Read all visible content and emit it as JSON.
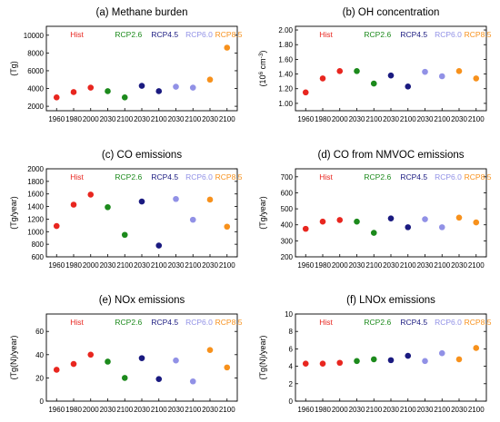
{
  "colors": {
    "Hist": "#e8261f",
    "RCP2.6": "#1c8a1c",
    "RCP4.5": "#1a1a80",
    "RCP6.0": "#9191e6",
    "RCP8.5": "#f7911c"
  },
  "x_tick_labels": [
    "1960",
    "1980",
    "2000",
    "2030",
    "2100",
    "2030",
    "2100",
    "2030",
    "2100",
    "2030",
    "2100"
  ],
  "chart_data": [
    {
      "type": "scatter",
      "title": "(a) Methane burden",
      "ylabel": "(Tg)",
      "ylim": [
        1500,
        11000
      ],
      "yticks": [
        2000,
        4000,
        6000,
        8000,
        10000
      ],
      "ytick_labels": [
        "2000",
        "4000",
        "6000",
        "8000",
        "10000"
      ],
      "legend": [
        "Hist",
        "RCP2.6",
        "RCP4.5",
        "RCP6.0",
        "RCP8.5"
      ],
      "categories": [
        "1960",
        "1980",
        "2000",
        "2030",
        "2100",
        "2030",
        "2100",
        "2030",
        "2100",
        "2030",
        "2100"
      ],
      "series": [
        {
          "name": "Hist",
          "values": [
            3000,
            3600,
            4100
          ]
        },
        {
          "name": "RCP2.6",
          "values": [
            3700,
            3000
          ]
        },
        {
          "name": "RCP4.5",
          "values": [
            4300,
            3700
          ]
        },
        {
          "name": "RCP6.0",
          "values": [
            4200,
            4100
          ]
        },
        {
          "name": "RCP8.5",
          "values": [
            5000,
            8600
          ]
        }
      ]
    },
    {
      "type": "scatter",
      "title": "(b) OH concentration",
      "ylabel_main": "(10",
      "ylabel_exp": "6",
      "ylabel_rest": " cm",
      "ylabel_exp2": "-3",
      "ylabel_end": ")",
      "ylim": [
        0.9,
        2.05
      ],
      "yticks": [
        1.0,
        1.2,
        1.4,
        1.6,
        1.8,
        2.0
      ],
      "ytick_labels": [
        "1.00",
        "1.20",
        "1.40",
        "1.60",
        "1.80",
        "2.00"
      ],
      "legend": [
        "Hist",
        "RCP2.6",
        "RCP4.5",
        "RCP6.0",
        "RCP8.5"
      ],
      "categories": [
        "1960",
        "1980",
        "2000",
        "2030",
        "2100",
        "2030",
        "2100",
        "2030",
        "2100",
        "2030",
        "2100"
      ],
      "series": [
        {
          "name": "Hist",
          "values": [
            1.15,
            1.34,
            1.44
          ]
        },
        {
          "name": "RCP2.6",
          "values": [
            1.44,
            1.27
          ]
        },
        {
          "name": "RCP4.5",
          "values": [
            1.38,
            1.23
          ]
        },
        {
          "name": "RCP6.0",
          "values": [
            1.43,
            1.37
          ]
        },
        {
          "name": "RCP8.5",
          "values": [
            1.44,
            1.34
          ]
        }
      ]
    },
    {
      "type": "scatter",
      "title": "(c) CO emissions",
      "ylabel": "(Tg/year)",
      "ylim": [
        600,
        2000
      ],
      "yticks": [
        600,
        800,
        1000,
        1200,
        1400,
        1600,
        1800,
        2000
      ],
      "ytick_labels": [
        "600",
        "800",
        "1000",
        "1200",
        "1400",
        "1600",
        "1800",
        "2000"
      ],
      "legend": [
        "Hist",
        "RCP2.6",
        "RCP4.5",
        "RCP6.0",
        "RCP8.5"
      ],
      "categories": [
        "1960",
        "1980",
        "2000",
        "2030",
        "2100",
        "2030",
        "2100",
        "2030",
        "2100",
        "2030",
        "2100"
      ],
      "series": [
        {
          "name": "Hist",
          "values": [
            1090,
            1430,
            1590
          ]
        },
        {
          "name": "RCP2.6",
          "values": [
            1390,
            950
          ]
        },
        {
          "name": "RCP4.5",
          "values": [
            1480,
            780
          ]
        },
        {
          "name": "RCP6.0",
          "values": [
            1520,
            1190
          ]
        },
        {
          "name": "RCP8.5",
          "values": [
            1510,
            1080
          ]
        }
      ]
    },
    {
      "type": "scatter",
      "title": "(d) CO from NMVOC emissions",
      "ylabel": "(Tg/year)",
      "ylim": [
        200,
        750
      ],
      "yticks": [
        200,
        300,
        400,
        500,
        600,
        700
      ],
      "ytick_labels": [
        "200",
        "300",
        "400",
        "500",
        "600",
        "700"
      ],
      "legend": [
        "Hist",
        "RCP2.6",
        "RCP4.5",
        "RCP6.0",
        "RCP8.5"
      ],
      "categories": [
        "1960",
        "1980",
        "2000",
        "2030",
        "2100",
        "2030",
        "2100",
        "2030",
        "2100",
        "2030",
        "2100"
      ],
      "series": [
        {
          "name": "Hist",
          "values": [
            375,
            420,
            430
          ]
        },
        {
          "name": "RCP2.6",
          "values": [
            420,
            350
          ]
        },
        {
          "name": "RCP4.5",
          "values": [
            440,
            385
          ]
        },
        {
          "name": "RCP6.0",
          "values": [
            435,
            385
          ]
        },
        {
          "name": "RCP8.5",
          "values": [
            445,
            415
          ]
        }
      ]
    },
    {
      "type": "scatter",
      "title": "(e) NOx emissions",
      "ylabel": "(Tg(N)/year)",
      "ylim": [
        0,
        75
      ],
      "yticks": [
        0,
        20,
        40,
        60
      ],
      "ytick_labels": [
        "0",
        "20",
        "40",
        "60"
      ],
      "legend": [
        "Hist",
        "RCP2.6",
        "RCP4.5",
        "RCP6.0",
        "RCP8.5"
      ],
      "categories": [
        "1960",
        "1980",
        "2000",
        "2030",
        "2100",
        "2030",
        "2100",
        "2030",
        "2100",
        "2030",
        "2100"
      ],
      "series": [
        {
          "name": "Hist",
          "values": [
            27,
            32,
            40
          ]
        },
        {
          "name": "RCP2.6",
          "values": [
            34,
            20
          ]
        },
        {
          "name": "RCP4.5",
          "values": [
            37,
            19
          ]
        },
        {
          "name": "RCP6.0",
          "values": [
            35,
            17
          ]
        },
        {
          "name": "RCP8.5",
          "values": [
            44,
            29
          ]
        }
      ]
    },
    {
      "type": "scatter",
      "title": "(f) LNOx emissions",
      "ylabel": "(Tg(N)/year)",
      "ylim": [
        0,
        10
      ],
      "yticks": [
        0,
        2,
        4,
        6,
        8,
        10
      ],
      "ytick_labels": [
        "0",
        "2",
        "4",
        "6",
        "8",
        "10"
      ],
      "legend": [
        "Hist",
        "RCP2.6",
        "RCP4.5",
        "RCP6.0",
        "RCP8.5"
      ],
      "categories": [
        "1960",
        "1980",
        "2000",
        "2030",
        "2100",
        "2030",
        "2100",
        "2030",
        "2100",
        "2030",
        "2100"
      ],
      "series": [
        {
          "name": "Hist",
          "values": [
            4.3,
            4.3,
            4.4
          ]
        },
        {
          "name": "RCP2.6",
          "values": [
            4.6,
            4.8
          ]
        },
        {
          "name": "RCP4.5",
          "values": [
            4.7,
            5.2
          ]
        },
        {
          "name": "RCP6.0",
          "values": [
            4.6,
            5.5
          ]
        },
        {
          "name": "RCP8.5",
          "values": [
            4.8,
            6.1
          ]
        }
      ]
    }
  ]
}
